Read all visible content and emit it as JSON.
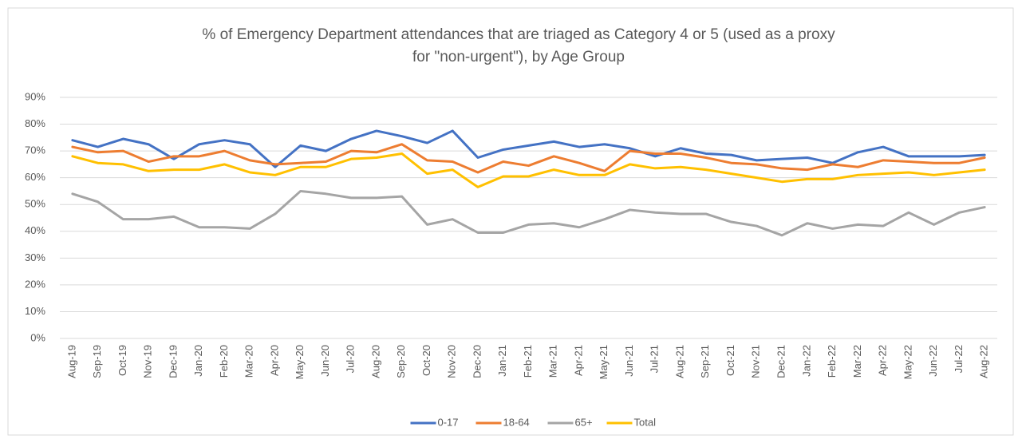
{
  "chart_data": {
    "type": "line",
    "title": "% of Emergency Department attendances that are triaged as Category 4 or 5 (used as a proxy for \"non-urgent\"), by Age Group",
    "categories": [
      "Aug-19",
      "Sep-19",
      "Oct-19",
      "Nov-19",
      "Dec-19",
      "Jan-20",
      "Feb-20",
      "Mar-20",
      "Apr-20",
      "May-20",
      "Jun-20",
      "Jul-20",
      "Aug-20",
      "Sep-20",
      "Oct-20",
      "Nov-20",
      "Dec-20",
      "Jan-21",
      "Feb-21",
      "Mar-21",
      "Apr-21",
      "May-21",
      "Jun-21",
      "Jul-21",
      "Aug-21",
      "Sep-21",
      "Oct-21",
      "Nov-21",
      "Dec-21",
      "Jan-22",
      "Feb-22",
      "Mar-22",
      "Apr-22",
      "May-22",
      "Jun-22",
      "Jul-22",
      "Aug-22"
    ],
    "series": [
      {
        "name": "0-17",
        "color": "#4472c4",
        "values": [
          74,
          71.5,
          74.5,
          72.5,
          67,
          72.5,
          74,
          72.5,
          64,
          72,
          70,
          74.5,
          77.5,
          75.5,
          73,
          77.5,
          67.5,
          70.5,
          72,
          73.5,
          71.5,
          72.5,
          71,
          68,
          71,
          69,
          68.5,
          66.5,
          67,
          67.5,
          65.5,
          69.5,
          71.5,
          68,
          68,
          68,
          68.5
        ]
      },
      {
        "name": "18-64",
        "color": "#ed7d31",
        "values": [
          71.5,
          69.5,
          70,
          66,
          68,
          68,
          70,
          66.5,
          65,
          65.5,
          66,
          70,
          69.5,
          72.5,
          66.5,
          66,
          62,
          66,
          64.5,
          68,
          65.5,
          62.5,
          70,
          69,
          69,
          67.5,
          65.5,
          65,
          63.5,
          63,
          65,
          64,
          66.5,
          66,
          65.5,
          65.5,
          67.5
        ]
      },
      {
        "name": "65+",
        "color": "#a5a5a5",
        "values": [
          54,
          51,
          44.5,
          44.5,
          45.5,
          41.5,
          41.5,
          41,
          46.5,
          55,
          54,
          52.5,
          52.5,
          53,
          42.5,
          44.5,
          39.5,
          39.5,
          42.5,
          43,
          41.5,
          44.5,
          48,
          47,
          46.5,
          46.5,
          43.5,
          42,
          38.5,
          43,
          41,
          42.5,
          42,
          47,
          42.5,
          47,
          49
        ]
      },
      {
        "name": "Total",
        "color": "#ffc000",
        "values": [
          68,
          65.5,
          65,
          62.5,
          63,
          63,
          65,
          62,
          61,
          64,
          64,
          67,
          67.5,
          69,
          61.5,
          63,
          56.5,
          60.5,
          60.5,
          63,
          61,
          61,
          65,
          63.5,
          64,
          63,
          61.5,
          60,
          58.5,
          59.5,
          59.5,
          61,
          61.5,
          62,
          61,
          62,
          63
        ]
      }
    ],
    "ylim": [
      0,
      90
    ],
    "yticks": [
      {
        "value": 0,
        "label": "0%"
      },
      {
        "value": 10,
        "label": "10%"
      },
      {
        "value": 20,
        "label": "20%"
      },
      {
        "value": 30,
        "label": "30%"
      },
      {
        "value": 40,
        "label": "40%"
      },
      {
        "value": 50,
        "label": "50%"
      },
      {
        "value": 60,
        "label": "60%"
      },
      {
        "value": 70,
        "label": "70%"
      },
      {
        "value": 80,
        "label": "80%"
      },
      {
        "value": 90,
        "label": "90%"
      }
    ],
    "grid": true,
    "legend": "bottom"
  }
}
